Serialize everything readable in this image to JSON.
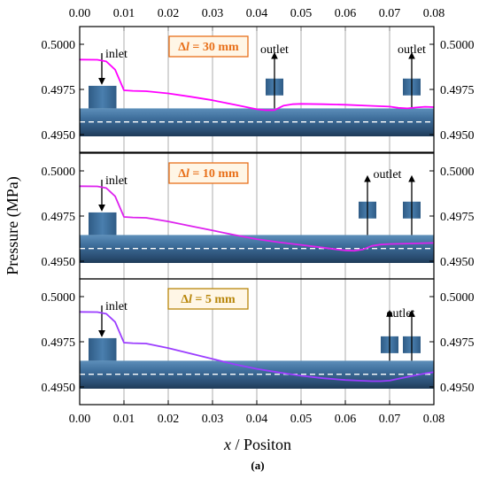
{
  "chart_data": {
    "type": "line",
    "xlabel_var": "x",
    "xlabel_rest": " / Positon",
    "ylabel": "Pressure (MPa)",
    "xlim": [
      0.0,
      0.08
    ],
    "xticks": [
      "0.00",
      "0.01",
      "0.02",
      "0.03",
      "0.04",
      "0.05",
      "0.06",
      "0.07",
      "0.08"
    ],
    "caption_paren_open": "(",
    "caption": "a",
    "caption_paren_close": ")",
    "panels": [
      {
        "label_delta": "Δ",
        "label_var": "l",
        "label_rest": " = 30 mm",
        "label_color": "#e8701a",
        "line_color": "#ff00ff",
        "ylim": [
          0.495,
          0.5
        ],
        "yticks": [
          "0.4950",
          "0.4975",
          "0.5000"
        ],
        "inlet_text": "inlet",
        "outlet_texts": [
          "outlet",
          "outlet"
        ],
        "outlet_x": [
          0.044,
          0.075
        ],
        "x": [
          0.0,
          0.004,
          0.006,
          0.008,
          0.01,
          0.012,
          0.015,
          0.02,
          0.025,
          0.03,
          0.035,
          0.04,
          0.042,
          0.044,
          0.046,
          0.048,
          0.05,
          0.055,
          0.06,
          0.065,
          0.07,
          0.072,
          0.074,
          0.076,
          0.078,
          0.08
        ],
        "y": [
          0.49915,
          0.49914,
          0.49905,
          0.4986,
          0.49745,
          0.49742,
          0.4974,
          0.49728,
          0.4971,
          0.4969,
          0.49665,
          0.4964,
          0.49635,
          0.49636,
          0.4966,
          0.49668,
          0.4967,
          0.49668,
          0.49665,
          0.4966,
          0.49655,
          0.49648,
          0.49645,
          0.4965,
          0.49654,
          0.49652
        ]
      },
      {
        "label_delta": "Δ",
        "label_var": "l",
        "label_rest": " = 10 mm",
        "label_color": "#e8701a",
        "line_color": "#dd22ee",
        "ylim": [
          0.495,
          0.5
        ],
        "yticks": [
          "0.4950",
          "0.4975",
          "0.5000"
        ],
        "inlet_text": "inlet",
        "outlet_texts": [
          "outlet"
        ],
        "outlet_x": [
          0.065,
          0.075
        ],
        "x": [
          0.0,
          0.004,
          0.006,
          0.008,
          0.01,
          0.012,
          0.015,
          0.02,
          0.025,
          0.03,
          0.035,
          0.04,
          0.045,
          0.05,
          0.055,
          0.058,
          0.06,
          0.062,
          0.064,
          0.066,
          0.068,
          0.07,
          0.072,
          0.075,
          0.078,
          0.08
        ],
        "y": [
          0.49915,
          0.49914,
          0.49905,
          0.4986,
          0.49745,
          0.49742,
          0.4974,
          0.4972,
          0.49695,
          0.4967,
          0.49645,
          0.49622,
          0.49605,
          0.4959,
          0.49575,
          0.49565,
          0.4956,
          0.49558,
          0.49565,
          0.49585,
          0.49592,
          0.49595,
          0.49596,
          0.49598,
          0.496,
          0.49601
        ]
      },
      {
        "label_delta": "Δ",
        "label_var": "l",
        "label_rest": " = 5 mm",
        "label_color": "#b8860b",
        "line_color": "#9b3dff",
        "ylim": [
          0.495,
          0.5
        ],
        "yticks": [
          "0.4950",
          "0.4975",
          "0.5000"
        ],
        "inlet_text": "inlet",
        "outlet_texts": [
          "outlet"
        ],
        "outlet_x": [
          0.07,
          0.075
        ],
        "x": [
          0.0,
          0.004,
          0.006,
          0.008,
          0.01,
          0.012,
          0.015,
          0.02,
          0.025,
          0.03,
          0.035,
          0.04,
          0.045,
          0.05,
          0.055,
          0.058,
          0.06,
          0.063,
          0.066,
          0.068,
          0.07,
          0.072,
          0.074,
          0.076,
          0.078,
          0.08
        ],
        "y": [
          0.49915,
          0.49914,
          0.49905,
          0.4986,
          0.49745,
          0.49742,
          0.4974,
          0.49715,
          0.49685,
          0.49655,
          0.49625,
          0.496,
          0.4958,
          0.49562,
          0.49548,
          0.49542,
          0.49538,
          0.49535,
          0.49532,
          0.49532,
          0.49535,
          0.49545,
          0.49555,
          0.49565,
          0.49575,
          0.49582
        ]
      }
    ]
  }
}
